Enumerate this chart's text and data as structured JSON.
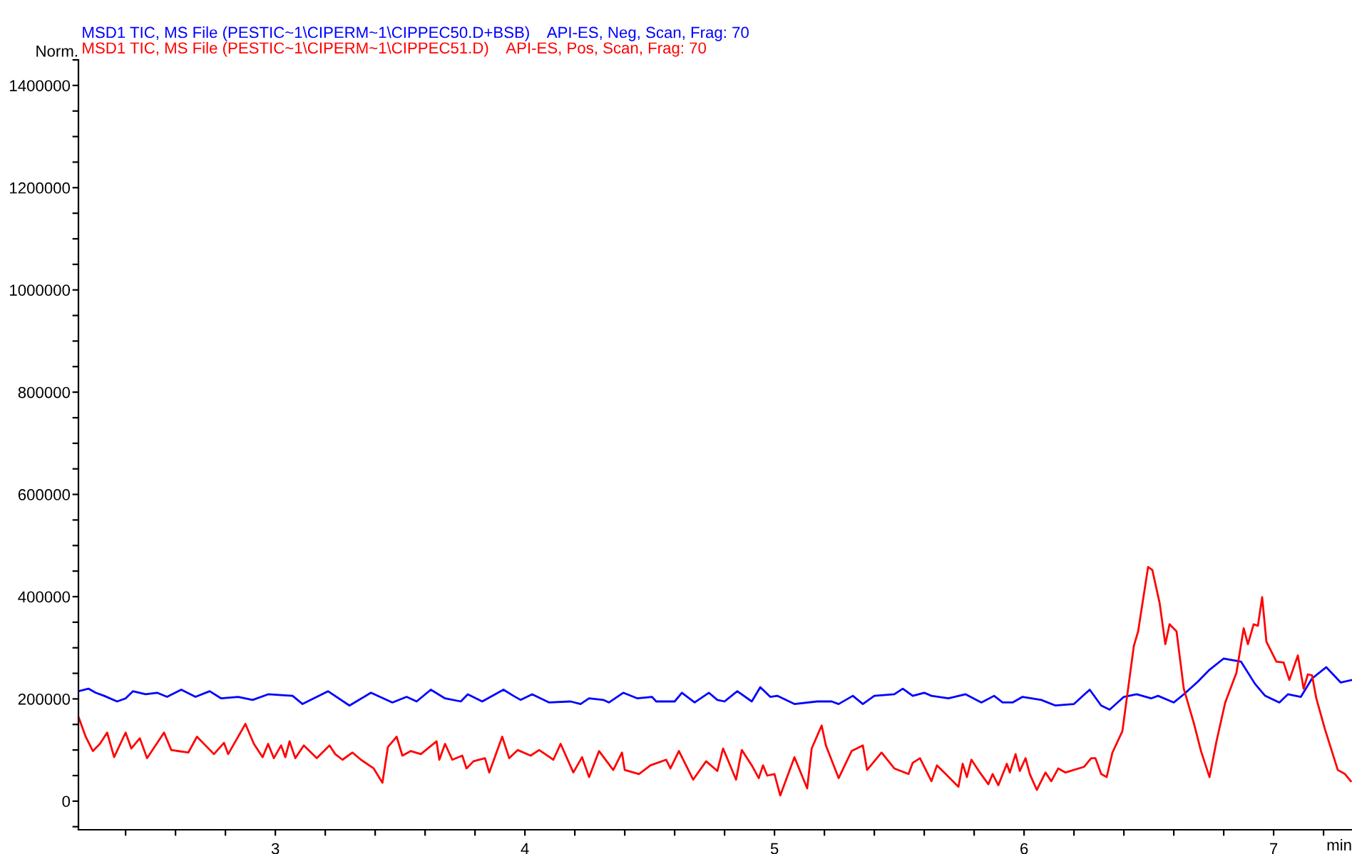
{
  "chart_data": {
    "type": "line",
    "ylabel": "Norm.",
    "xlabel": "min",
    "xlim": [
      2.211,
      7.314
    ],
    "ylim": [
      -56000,
      1450000
    ],
    "xticks": [
      {
        "value": 2.4,
        "label": null
      },
      {
        "value": 2.6,
        "label": null
      },
      {
        "value": 2.8,
        "label": null
      },
      3,
      {
        "value": 3.2,
        "label": null
      },
      {
        "value": 3.4,
        "label": null
      },
      {
        "value": 3.6,
        "label": null
      },
      {
        "value": 3.8,
        "label": null
      },
      4,
      {
        "value": 4.2,
        "label": null
      },
      {
        "value": 4.4,
        "label": null
      },
      {
        "value": 4.6,
        "label": null
      },
      {
        "value": 4.8,
        "label": null
      },
      5,
      {
        "value": 5.2,
        "label": null
      },
      {
        "value": 5.4,
        "label": null
      },
      {
        "value": 5.6,
        "label": null
      },
      {
        "value": 5.8,
        "label": null
      },
      6,
      {
        "value": 6.2,
        "label": null
      },
      {
        "value": 6.4,
        "label": null
      },
      {
        "value": 6.6,
        "label": null
      },
      {
        "value": 6.8,
        "label": null
      },
      7,
      {
        "value": 7.2,
        "label": null
      }
    ],
    "yticks": [
      {
        "value": -50000,
        "label": null
      },
      0,
      {
        "value": 50000,
        "label": null
      },
      {
        "value": 100000,
        "label": null
      },
      {
        "value": 150000,
        "label": null
      },
      200000,
      {
        "value": 250000,
        "label": null
      },
      {
        "value": 300000,
        "label": null
      },
      {
        "value": 350000,
        "label": null
      },
      400000,
      {
        "value": 450000,
        "label": null
      },
      {
        "value": 500000,
        "label": null
      },
      {
        "value": 550000,
        "label": null
      },
      600000,
      {
        "value": 650000,
        "label": null
      },
      {
        "value": 700000,
        "label": null
      },
      {
        "value": 750000,
        "label": null
      },
      800000,
      {
        "value": 850000,
        "label": null
      },
      {
        "value": 900000,
        "label": null
      },
      {
        "value": 950000,
        "label": null
      },
      1000000,
      {
        "value": 1050000,
        "label": null
      },
      {
        "value": 1100000,
        "label": null
      },
      {
        "value": 1150000,
        "label": null
      },
      1200000,
      {
        "value": 1250000,
        "label": null
      },
      {
        "value": 1300000,
        "label": null
      },
      {
        "value": 1350000,
        "label": null
      },
      1400000,
      {
        "value": 1450000,
        "label": null
      }
    ],
    "grid": false,
    "legend": "top left",
    "marker": "none",
    "line_style": "solid",
    "series": [
      {
        "name": "MSD1 TIC, MS File (PESTIC~1\\CIPERM~1\\CIPPEC50.D+BSB)    API-ES, Neg, Scan, Frag: 70",
        "color": "#0000ff",
        "x": [
          2.211,
          2.251,
          2.28,
          2.314,
          2.366,
          2.4,
          2.429,
          2.48,
          2.526,
          2.566,
          2.623,
          2.68,
          2.737,
          2.783,
          2.851,
          2.909,
          2.971,
          3.069,
          3.109,
          3.211,
          3.297,
          3.383,
          3.469,
          3.526,
          3.566,
          3.623,
          3.68,
          3.743,
          3.771,
          3.829,
          3.914,
          3.954,
          3.983,
          4.029,
          4.097,
          4.183,
          4.223,
          4.257,
          4.314,
          4.337,
          4.394,
          4.451,
          4.509,
          4.526,
          4.6,
          4.629,
          4.68,
          4.737,
          4.771,
          4.8,
          4.851,
          4.909,
          4.943,
          4.983,
          5.011,
          5.08,
          5.171,
          5.229,
          5.257,
          5.314,
          5.354,
          5.4,
          5.48,
          5.514,
          5.554,
          5.6,
          5.629,
          5.697,
          5.766,
          5.829,
          5.88,
          5.914,
          5.954,
          5.994,
          6.069,
          6.126,
          6.2,
          6.263,
          6.309,
          6.343,
          6.4,
          6.451,
          6.509,
          6.537,
          6.6,
          6.64,
          6.697,
          6.743,
          6.8,
          6.869,
          6.926,
          6.966,
          7.023,
          7.057,
          7.109,
          7.154,
          7.211,
          7.269,
          7.314
        ],
        "values": [
          215000,
          220000,
          212000,
          206000,
          195000,
          201000,
          215000,
          209000,
          212000,
          204000,
          218000,
          204000,
          215000,
          201000,
          204000,
          198000,
          209000,
          206000,
          190000,
          215000,
          187000,
          212000,
          193000,
          204000,
          195000,
          218000,
          201000,
          195000,
          209000,
          195000,
          218000,
          206000,
          198000,
          209000,
          193000,
          195000,
          190000,
          201000,
          198000,
          193000,
          212000,
          201000,
          204000,
          195000,
          195000,
          212000,
          193000,
          212000,
          198000,
          195000,
          215000,
          195000,
          223000,
          204000,
          206000,
          190000,
          195000,
          195000,
          190000,
          206000,
          190000,
          206000,
          209000,
          220000,
          206000,
          212000,
          206000,
          201000,
          209000,
          193000,
          206000,
          193000,
          193000,
          204000,
          198000,
          187000,
          190000,
          218000,
          187000,
          179000,
          204000,
          209000,
          201000,
          206000,
          193000,
          209000,
          234000,
          257000,
          279000,
          273000,
          229000,
          206000,
          193000,
          209000,
          204000,
          240000,
          262000,
          232000,
          237000
        ]
      },
      {
        "name": "MSD1 TIC, MS File (PESTIC~1\\CIPERM~1\\CIPPEC51.D)    API-ES, Pos, Scan, Frag: 70",
        "color": "#ff0000",
        "x": [
          2.211,
          2.24,
          2.269,
          2.297,
          2.326,
          2.354,
          2.4,
          2.423,
          2.457,
          2.486,
          2.554,
          2.583,
          2.651,
          2.686,
          2.754,
          2.794,
          2.811,
          2.88,
          2.914,
          2.949,
          2.971,
          2.994,
          3.023,
          3.04,
          3.057,
          3.08,
          3.114,
          3.166,
          3.217,
          3.24,
          3.269,
          3.309,
          3.343,
          3.394,
          3.429,
          3.451,
          3.486,
          3.509,
          3.543,
          3.583,
          3.646,
          3.657,
          3.68,
          3.709,
          3.749,
          3.766,
          3.794,
          3.84,
          3.857,
          3.909,
          3.937,
          3.971,
          4.023,
          4.057,
          4.114,
          4.143,
          4.194,
          4.229,
          4.257,
          4.297,
          4.354,
          4.389,
          4.4,
          4.457,
          4.503,
          4.566,
          4.583,
          4.617,
          4.674,
          4.726,
          4.771,
          4.794,
          4.846,
          4.869,
          4.909,
          4.937,
          4.954,
          4.971,
          5.0,
          5.023,
          5.08,
          5.131,
          5.149,
          5.189,
          5.206,
          5.257,
          5.309,
          5.354,
          5.371,
          5.429,
          5.48,
          5.537,
          5.554,
          5.583,
          5.629,
          5.651,
          5.686,
          5.737,
          5.754,
          5.771,
          5.789,
          5.823,
          5.857,
          5.874,
          5.897,
          5.931,
          5.943,
          5.966,
          5.983,
          6.006,
          6.023,
          6.051,
          6.086,
          6.109,
          6.137,
          6.166,
          6.24,
          6.269,
          6.286,
          6.309,
          6.331,
          6.354,
          6.394,
          6.44,
          6.457,
          6.497,
          6.514,
          6.543,
          6.566,
          6.583,
          6.611,
          6.64,
          6.68,
          6.709,
          6.743,
          6.771,
          6.806,
          6.851,
          6.88,
          6.897,
          6.92,
          6.937,
          6.954,
          6.971,
          7.011,
          7.04,
          7.063,
          7.097,
          7.12,
          7.137,
          7.154,
          7.171,
          7.206,
          7.257,
          7.286,
          7.309
        ],
        "values": [
          165000,
          126000,
          98000,
          112000,
          134000,
          86000,
          134000,
          103000,
          123000,
          84000,
          134000,
          100000,
          95000,
          126000,
          92000,
          114000,
          92000,
          151000,
          112000,
          86000,
          112000,
          84000,
          109000,
          86000,
          117000,
          84000,
          109000,
          84000,
          109000,
          92000,
          81000,
          95000,
          81000,
          64000,
          36000,
          106000,
          126000,
          89000,
          98000,
          92000,
          117000,
          81000,
          112000,
          81000,
          89000,
          64000,
          78000,
          84000,
          56000,
          126000,
          84000,
          100000,
          89000,
          100000,
          81000,
          112000,
          56000,
          86000,
          47000,
          98000,
          61000,
          95000,
          61000,
          53000,
          70000,
          81000,
          64000,
          98000,
          42000,
          78000,
          59000,
          103000,
          42000,
          100000,
          70000,
          45000,
          70000,
          50000,
          53000,
          11000,
          86000,
          25000,
          103000,
          148000,
          109000,
          45000,
          98000,
          109000,
          61000,
          95000,
          64000,
          53000,
          75000,
          84000,
          39000,
          70000,
          53000,
          28000,
          73000,
          47000,
          81000,
          56000,
          33000,
          53000,
          31000,
          73000,
          56000,
          92000,
          59000,
          84000,
          53000,
          22000,
          56000,
          39000,
          64000,
          56000,
          67000,
          84000,
          84000,
          53000,
          47000,
          95000,
          137000,
          304000,
          332000,
          458000,
          452000,
          388000,
          307000,
          346000,
          332000,
          220000,
          153000,
          98000,
          47000,
          117000,
          193000,
          251000,
          338000,
          307000,
          346000,
          343000,
          399000,
          312000,
          273000,
          271000,
          237000,
          285000,
          220000,
          248000,
          246000,
          201000,
          140000,
          61000,
          53000,
          39000
        ]
      }
    ]
  }
}
